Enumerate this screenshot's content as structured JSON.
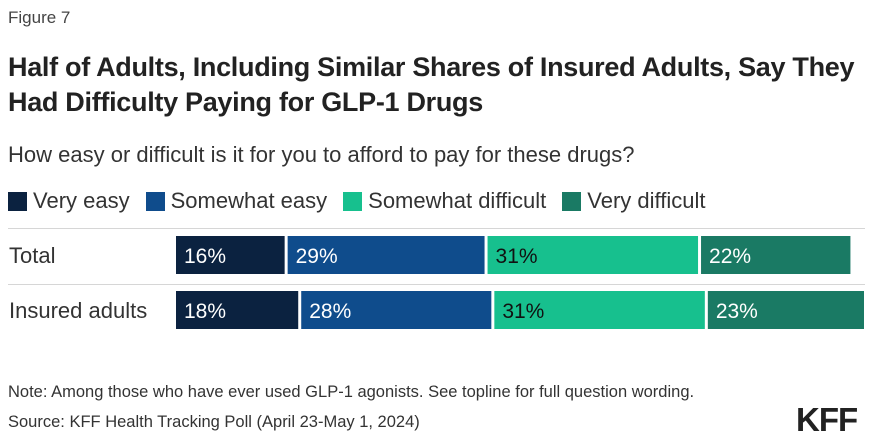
{
  "figure_label": "Figure 7",
  "title": "Half of Adults, Including Similar Shares of Insured Adults, Say They Had Difficulty Paying for GLP-1 Drugs",
  "subtitle": "How easy or difficult is it for you to afford to pay for these drugs?",
  "note": "Note: Among those who have ever used GLP-1 agonists. See topline for full question wording.",
  "source": "Source: KFF Health Tracking Poll (April 23-May 1, 2024)",
  "logo": "KFF",
  "colors": {
    "very_easy": "#0b2240",
    "somewhat_easy": "#0f4c8c",
    "somewhat_difficult": "#17c08e",
    "very_difficult": "#1a7a64"
  },
  "chart_data": {
    "type": "bar",
    "orientation": "horizontal",
    "stacked": true,
    "categories": [
      "Total",
      "Insured adults"
    ],
    "series": [
      {
        "name": "Very easy",
        "color": "#0b2240",
        "values": [
          16,
          18
        ],
        "labels": [
          "16%",
          "18%"
        ]
      },
      {
        "name": "Somewhat easy",
        "color": "#0f4c8c",
        "values": [
          29,
          28
        ],
        "labels": [
          "29%",
          "28%"
        ]
      },
      {
        "name": "Somewhat difficult",
        "color": "#17c08e",
        "values": [
          31,
          31
        ],
        "labels": [
          "31%",
          "31%"
        ]
      },
      {
        "name": "Very difficult",
        "color": "#1a7a64",
        "values": [
          22,
          23
        ],
        "labels": [
          "22%",
          "23%"
        ]
      }
    ],
    "xlim": [
      0,
      100
    ]
  }
}
